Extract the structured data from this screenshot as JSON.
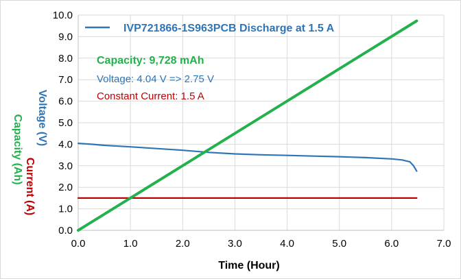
{
  "chart_data": {
    "type": "line",
    "legend": {
      "position": "top",
      "label": "IVP721866-1S963PCB Discharge at 1.5 A"
    },
    "annotations": [
      {
        "text": "Capacity: 9,728 mAh",
        "color": "#22b14c",
        "bold": true
      },
      {
        "text": "Voltage: 4.04 V => 2.75 V",
        "color": "#2e75b6",
        "bold": false
      },
      {
        "text": "Constant Current: 1.5 A",
        "color": "#c00000",
        "bold": false
      }
    ],
    "xlabel": "Time (Hour)",
    "ylabels": [
      {
        "text": "Voltage (V)",
        "color": "#2e75b6"
      },
      {
        "text": "Current (A)",
        "color": "#c00000"
      },
      {
        "text": "Capacity (Ah)",
        "color": "#22b14c"
      }
    ],
    "xlim": [
      0,
      7
    ],
    "ylim": [
      0,
      10
    ],
    "xticks": [
      "0.0",
      "1.0",
      "2.0",
      "3.0",
      "4.0",
      "5.0",
      "6.0",
      "7.0"
    ],
    "yticks": [
      "0.0",
      "1.0",
      "2.0",
      "3.0",
      "4.0",
      "5.0",
      "6.0",
      "7.0",
      "8.0",
      "9.0",
      "10.0"
    ],
    "grid": true,
    "series": [
      {
        "name": "IVP721866-1S963PCB Discharge at 1.5 A",
        "color": "#2e75b6",
        "x": [
          0,
          0.25,
          0.5,
          1.0,
          1.5,
          2.0,
          2.5,
          3.0,
          3.5,
          4.0,
          4.5,
          5.0,
          5.5,
          6.0,
          6.2,
          6.35,
          6.42,
          6.48
        ],
        "y": [
          4.04,
          4.0,
          3.95,
          3.88,
          3.8,
          3.72,
          3.62,
          3.55,
          3.51,
          3.48,
          3.45,
          3.42,
          3.38,
          3.32,
          3.27,
          3.18,
          3.0,
          2.75
        ]
      },
      {
        "color": "#c00000",
        "x": [
          0,
          6.48
        ],
        "y": [
          1.5,
          1.5
        ]
      },
      {
        "color": "#22b14c",
        "x": [
          0,
          6.48
        ],
        "y": [
          0,
          9.728
        ]
      }
    ]
  }
}
